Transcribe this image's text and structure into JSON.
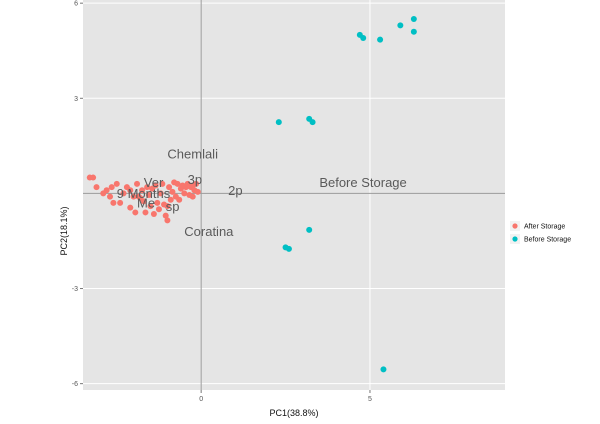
{
  "chart_data": {
    "type": "scatter",
    "title": "",
    "xlabel": "PC1(38.8%)",
    "ylabel": "PC2(18.1%)",
    "xlim": [
      -3.5,
      9
    ],
    "ylim": [
      -6.2,
      6.1
    ],
    "x_ticks": [
      0,
      5
    ],
    "x_tick_labels": [
      "0",
      "5"
    ],
    "y_ticks": [
      6,
      3,
      -3,
      -6
    ],
    "y_tick_labels": [
      "6",
      "3",
      "-3",
      "-6"
    ],
    "grid": true,
    "zero_lines": true,
    "legend_position": "right",
    "series": [
      {
        "name": "After Storage",
        "color": "#f8766d",
        "points": [
          [
            -3.3,
            0.5
          ],
          [
            -3.2,
            0.5
          ],
          [
            -3.1,
            0.2
          ],
          [
            -2.9,
            0.0
          ],
          [
            -2.8,
            0.1
          ],
          [
            -2.7,
            -0.1
          ],
          [
            -2.65,
            0.2
          ],
          [
            -2.6,
            -0.3
          ],
          [
            -2.5,
            0.3
          ],
          [
            -2.4,
            -0.3
          ],
          [
            -2.3,
            0.0
          ],
          [
            -2.2,
            0.2
          ],
          [
            -2.1,
            0.1
          ],
          [
            -2.0,
            -0.1
          ],
          [
            -1.95,
            -0.6
          ],
          [
            -1.9,
            0.3
          ],
          [
            -1.85,
            -0.1
          ],
          [
            -1.8,
            -0.15
          ],
          [
            -1.75,
            0.1
          ],
          [
            -1.7,
            -0.25
          ],
          [
            -1.65,
            -0.6
          ],
          [
            -1.6,
            0.2
          ],
          [
            -1.55,
            -0.05
          ],
          [
            -1.5,
            -0.4
          ],
          [
            -1.45,
            0.15
          ],
          [
            -1.4,
            -0.65
          ],
          [
            -1.35,
            0.25
          ],
          [
            -1.3,
            -0.3
          ],
          [
            -1.25,
            -0.5
          ],
          [
            -1.2,
            0.0
          ],
          [
            -1.15,
            0.3
          ],
          [
            -1.1,
            -0.35
          ],
          [
            -1.05,
            -0.7
          ],
          [
            -1.0,
            -0.4
          ],
          [
            -0.95,
            0.2
          ],
          [
            -0.9,
            -0.2
          ],
          [
            -0.85,
            0.05
          ],
          [
            -0.8,
            0.35
          ],
          [
            -0.75,
            -0.1
          ],
          [
            -0.7,
            0.3
          ],
          [
            -0.65,
            -0.2
          ],
          [
            -0.6,
            0.15
          ],
          [
            -0.55,
            0.25
          ],
          [
            -0.5,
            0.0
          ],
          [
            -0.45,
            0.2
          ],
          [
            -0.4,
            0.3
          ],
          [
            -0.35,
            -0.05
          ],
          [
            -0.3,
            0.2
          ],
          [
            -0.25,
            0.25
          ],
          [
            -0.2,
            0.1
          ],
          [
            -0.15,
            0.3
          ],
          [
            -0.1,
            0.05
          ],
          [
            -1.0,
            -0.85
          ],
          [
            -2.1,
            -0.45
          ],
          [
            -0.25,
            -0.1
          ]
        ]
      },
      {
        "name": "Before Storage",
        "color": "#00bfc4",
        "points": [
          [
            4.7,
            5.0
          ],
          [
            4.8,
            4.9
          ],
          [
            5.3,
            4.85
          ],
          [
            5.9,
            5.3
          ],
          [
            6.3,
            5.5
          ],
          [
            6.3,
            5.1
          ],
          [
            2.3,
            2.25
          ],
          [
            3.2,
            2.35
          ],
          [
            3.3,
            2.25
          ],
          [
            3.2,
            -1.15
          ],
          [
            2.5,
            -1.7
          ],
          [
            2.6,
            -1.75
          ],
          [
            5.4,
            -5.55
          ]
        ]
      }
    ],
    "annotations": [
      {
        "text": "Chemlali",
        "x": -1.0,
        "y": 1.1
      },
      {
        "text": "Before Storage",
        "x": 3.5,
        "y": 0.2
      },
      {
        "text": "3p",
        "x": -0.4,
        "y": 0.3
      },
      {
        "text": "Ver",
        "x": -1.7,
        "y": 0.2
      },
      {
        "text": "9 Months",
        "x": -2.5,
        "y": -0.15
      },
      {
        "text": "2p",
        "x": 0.8,
        "y": -0.05
      },
      {
        "text": "Me",
        "x": -1.9,
        "y": -0.45
      },
      {
        "text": "sp",
        "x": -1.05,
        "y": -0.55
      },
      {
        "text": "Coratina",
        "x": -0.5,
        "y": -1.35
      }
    ]
  }
}
